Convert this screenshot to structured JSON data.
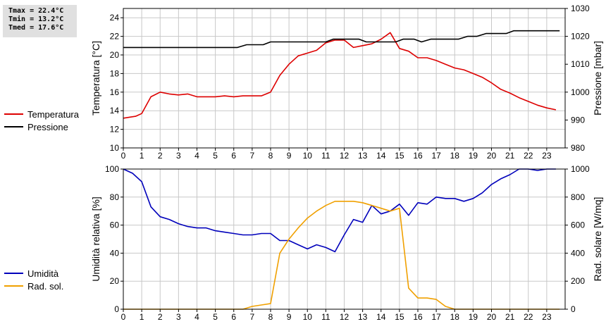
{
  "stats": {
    "tmax": "Tmax = 22.4°C",
    "tmin": "Tmin = 13.2°C",
    "tmed": "Tmed = 17.6°C"
  },
  "colors": {
    "temperature": "#dd0000",
    "pressure": "#000000",
    "humidity": "#0000bb",
    "radiation": "#f0a000",
    "grid": "#c8c8c8"
  },
  "legend_top": [
    {
      "label": "Temperatura",
      "color": "#dd0000"
    },
    {
      "label": "Pressione",
      "color": "#000000"
    }
  ],
  "legend_bottom": [
    {
      "label": "Umidità",
      "color": "#0000bb"
    },
    {
      "label": "Rad. sol.",
      "color": "#f0a000"
    }
  ],
  "chart_data": [
    {
      "type": "line",
      "xlabel": "",
      "ylabel_left": "Temperatura [°C]",
      "ylabel_right": "Pressione [mbar]",
      "xlim": [
        0,
        24
      ],
      "xticks": [
        0,
        1,
        2,
        3,
        4,
        5,
        6,
        7,
        8,
        9,
        10,
        11,
        12,
        13,
        14,
        15,
        16,
        17,
        18,
        19,
        20,
        21,
        22,
        23
      ],
      "ylim_left": [
        10,
        25
      ],
      "yticks_left": [
        10,
        12,
        14,
        16,
        18,
        20,
        22,
        24
      ],
      "ylim_right": [
        980,
        1030
      ],
      "yticks_right": [
        980,
        990,
        1000,
        1010,
        1020,
        1030
      ],
      "grid": true,
      "series": [
        {
          "name": "Temperatura",
          "axis": "left",
          "x": [
            0,
            0.33,
            0.67,
            1,
            1.5,
            2,
            2.5,
            3,
            3.5,
            4,
            4.5,
            5,
            5.5,
            6,
            6.5,
            7,
            7.5,
            8,
            8.5,
            9,
            9.5,
            10,
            10.5,
            11,
            11.5,
            12,
            12.5,
            13,
            13.5,
            14,
            14.5,
            15,
            15.5,
            16,
            16.5,
            17,
            17.5,
            18,
            18.5,
            19,
            19.5,
            20,
            20.5,
            21,
            21.5,
            22,
            22.5,
            23,
            23.5
          ],
          "y": [
            13.2,
            13.3,
            13.4,
            13.7,
            15.5,
            16.0,
            15.8,
            15.7,
            15.8,
            15.5,
            15.5,
            15.5,
            15.6,
            15.5,
            15.6,
            15.6,
            15.6,
            16.0,
            17.8,
            19.0,
            19.9,
            20.2,
            20.5,
            21.3,
            21.6,
            21.6,
            20.8,
            21.0,
            21.2,
            21.7,
            22.4,
            20.7,
            20.4,
            19.7,
            19.7,
            19.4,
            19.0,
            18.6,
            18.4,
            18.0,
            17.6,
            17.0,
            16.3,
            15.9,
            15.4,
            15.0,
            14.6,
            14.3,
            14.1
          ]
        },
        {
          "name": "Pressione",
          "axis": "right",
          "x": [
            0,
            6.2,
            6.7,
            7.6,
            8.0,
            11.0,
            11.4,
            12.8,
            13.2,
            14.8,
            15.2,
            15.8,
            16.2,
            16.7,
            18.2,
            18.7,
            19.2,
            19.7,
            20.8,
            21.2,
            23.7
          ],
          "y": [
            1016,
            1016,
            1017,
            1017,
            1018,
            1018,
            1019,
            1019,
            1018,
            1018,
            1019,
            1019,
            1018,
            1019,
            1019,
            1020,
            1020,
            1021,
            1021,
            1022,
            1022
          ]
        }
      ]
    },
    {
      "type": "line",
      "xlabel": "",
      "ylabel_left": "Umidità relativa [%]",
      "ylabel_right": "Rad. solare [W/mq]",
      "xlim": [
        0,
        24
      ],
      "xticks": [
        0,
        1,
        2,
        3,
        4,
        5,
        6,
        7,
        8,
        9,
        10,
        11,
        12,
        13,
        14,
        15,
        16,
        17,
        18,
        19,
        20,
        21,
        22,
        23
      ],
      "ylim_left": [
        0,
        100
      ],
      "yticks_left": [
        0,
        20,
        40,
        60,
        80,
        100
      ],
      "ylim_right": [
        0,
        1000
      ],
      "yticks_right": [
        0,
        200,
        400,
        600,
        800,
        1000
      ],
      "grid": true,
      "series": [
        {
          "name": "Umidità",
          "axis": "left",
          "x": [
            0,
            0.5,
            1,
            1.5,
            2,
            2.5,
            3,
            3.5,
            4,
            4.5,
            5,
            5.5,
            6,
            6.5,
            7,
            7.5,
            8,
            8.5,
            9,
            9.5,
            10,
            10.5,
            11,
            11.5,
            12,
            12.5,
            13,
            13.5,
            14,
            14.5,
            15,
            15.5,
            16,
            16.5,
            17,
            17.5,
            18,
            18.5,
            19,
            19.5,
            20,
            20.5,
            21,
            21.5,
            22,
            22.5,
            23,
            23.5
          ],
          "y": [
            100,
            97,
            91,
            73,
            66,
            64,
            61,
            59,
            58,
            58,
            56,
            55,
            54,
            53,
            53,
            54,
            54,
            49,
            49,
            46,
            43,
            46,
            44,
            41,
            53,
            64,
            62,
            74,
            68,
            70,
            75,
            67,
            76,
            75,
            80,
            79,
            79,
            77,
            79,
            83,
            89,
            93,
            96,
            100,
            100,
            99,
            100,
            100
          ]
        },
        {
          "name": "Rad. sol.",
          "axis": "right",
          "x": [
            0,
            6.5,
            7,
            7.5,
            8,
            8.5,
            9,
            9.5,
            10,
            10.5,
            11,
            11.5,
            12,
            12.5,
            13,
            13.5,
            14,
            14.5,
            15,
            15.5,
            16,
            16.5,
            17,
            17.5,
            18,
            18.5,
            19,
            23.7
          ],
          "y": [
            0,
            0,
            20,
            30,
            40,
            400,
            500,
            580,
            650,
            700,
            740,
            770,
            770,
            770,
            760,
            740,
            720,
            700,
            720,
            150,
            80,
            80,
            70,
            20,
            0,
            0,
            0,
            0
          ]
        }
      ]
    }
  ]
}
